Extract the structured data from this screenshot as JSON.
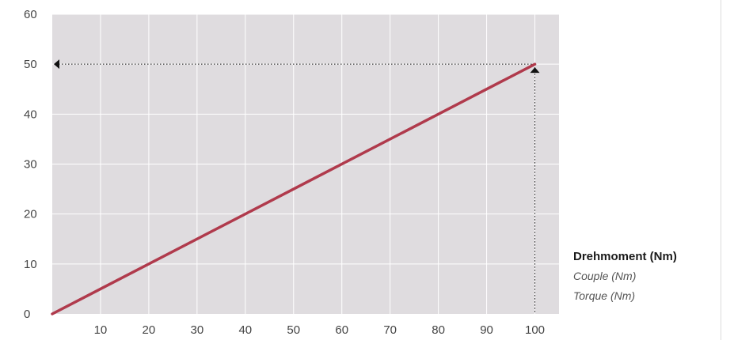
{
  "chart_data": {
    "type": "line",
    "title": "",
    "xlabel": "",
    "ylabel": "",
    "x_ticks": [
      10,
      20,
      30,
      40,
      50,
      60,
      70,
      80,
      90,
      100
    ],
    "y_ticks": [
      0,
      10,
      20,
      30,
      40,
      50,
      60
    ],
    "xlim": [
      0,
      105
    ],
    "ylim": [
      0,
      60
    ],
    "grid": true,
    "series": [
      {
        "x": [
          0,
          100
        ],
        "y": [
          0,
          50
        ],
        "color": "#b03a4c"
      }
    ],
    "marker_point": {
      "x": 100,
      "y": 50
    },
    "colors": {
      "plot_background": "#dfdcdf",
      "grid": "#ffffff",
      "line": "#b03a4c",
      "guide": "#111111"
    }
  },
  "legend": {
    "primary": "Drehmoment (Nm)",
    "secondary": [
      "Couple (Nm)",
      "Torque (Nm)"
    ],
    "placement": "right"
  }
}
